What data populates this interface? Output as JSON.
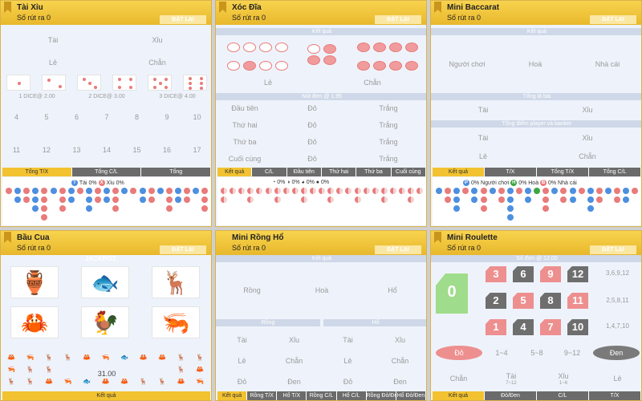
{
  "common": {
    "sub": "Số rút ra 0",
    "reset": "ĐẶT LẠI"
  },
  "taixiu": {
    "title": "Tài Xỉu",
    "tai": "Tài",
    "xiu": "Xỉu",
    "le": "Lẻ",
    "chan": "Chẵn",
    "dice_odds": [
      "1 DICE@ 2.00",
      "2 DICE@ 3.00",
      "3 DICE@ 4.00"
    ],
    "row1": [
      "4",
      "5",
      "6",
      "7",
      "8",
      "9",
      "10"
    ],
    "row2": [
      "11",
      "12",
      "13",
      "14",
      "15",
      "16",
      "17"
    ],
    "tabs": [
      "Tổng T/X",
      "Tổng C/L",
      "Tổng"
    ],
    "legend_tai": "Tài 0%",
    "legend_xiu": "Xỉu 0%"
  },
  "xocdia": {
    "title": "Xóc Đĩa",
    "ketqua": "Kết quả",
    "le": "Lẻ",
    "chan": "Chẵn",
    "odds": "Nút đơn @ 1.95",
    "rows": [
      "Đầu tiên",
      "Thứ hai",
      "Thứ ba",
      "Cuối cùng"
    ],
    "do": "Đỏ",
    "trang": "Trắng",
    "tabs": [
      "Kết quả",
      "C/L",
      "Đầu tiên",
      "Thứ hai",
      "Thứ ba",
      "Cuối cùng"
    ],
    "pct": [
      "0%",
      "0%",
      "0%",
      "0%"
    ]
  },
  "baccarat": {
    "title": "Mini Baccarat",
    "ketqua": "Kết quả",
    "player": "Người chơi",
    "hoa": "Hoà",
    "banker": "Nhà cái",
    "tongbai": "Tổng lá bài",
    "tai": "Tài",
    "xiu": "Xỉu",
    "tongdiem": "Tổng điểm player và banker",
    "le": "Lẻ",
    "chan": "Chẵn",
    "tabs": [
      "Kết quả",
      "T/X",
      "Tổng T/X",
      "Tổng C/L"
    ],
    "leg": [
      "0% Người chơi",
      "0% Hoà",
      "0% Nhà cái"
    ],
    "legc": [
      "P",
      "H",
      "B"
    ]
  },
  "baucua": {
    "title": "Bầu Cua",
    "jackpot": "JACKPOT:",
    "odds": "31.00",
    "ketqua": "Kết quả"
  },
  "rongho": {
    "title": "Mini Rồng Hổ",
    "ketqua": "Kết quả",
    "rong": "Rồng",
    "hoa": "Hoà",
    "ho": "Hổ",
    "tai": "Tài",
    "xiu": "Xỉu",
    "le": "Lẻ",
    "chan": "Chẵn",
    "do": "Đỏ",
    "den": "Đen",
    "tabs": [
      "Kết quả",
      "Rồng T/X",
      "Hổ T/X",
      "Rồng C/L",
      "Hổ C/L",
      "Rồng Đỏ/Đen",
      "Hổ Đỏ/Đen"
    ]
  },
  "roulette": {
    "title": "Mini Roulette",
    "odds": "Số đơn @ 12.00",
    "zero": "0",
    "nums": [
      "3",
      "6",
      "9",
      "12",
      "2",
      "5",
      "8",
      "11",
      "1",
      "4",
      "7",
      "10"
    ],
    "cols": [
      "3,6,9,12",
      "2,5,8,11",
      "1,4,7,10"
    ],
    "do": "Đỏ",
    "r1": "1~4",
    "r2": "5~8",
    "r3": "9~12",
    "den": "Đen",
    "chan": "Chẵn",
    "tai": "Tài",
    "tai_sub": "7~12",
    "xiu": "Xỉu",
    "xiu_sub": "1~6",
    "le": "Lẻ",
    "tabs": [
      "Kết quả",
      "Đỏ/Đen",
      "C/L",
      "T/X"
    ]
  },
  "colors": {
    "red": "#e97b7b",
    "blue": "#4d8fe0",
    "green": "#3aa843",
    "gold": "#f2c230"
  }
}
